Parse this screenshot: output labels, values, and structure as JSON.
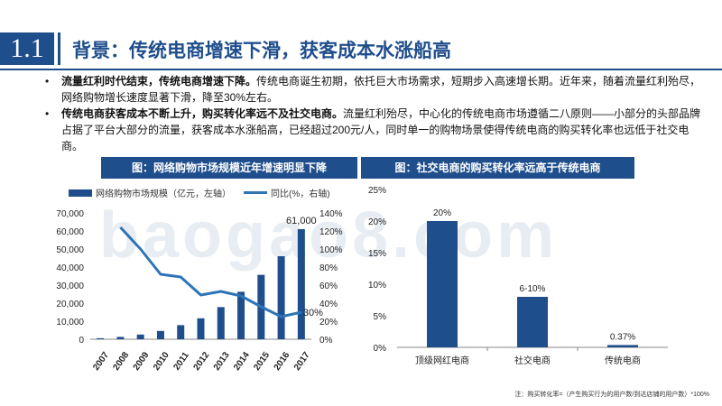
{
  "header": {
    "section_number": "1.1",
    "title": "背景：传统电商增速下滑，获客成本水涨船高"
  },
  "bullets": [
    {
      "bold": "流量红利时代结束，传统电商增速下降。",
      "text": "传统电商诞生初期，依托巨大市场需求，短期步入高速增长期。近年来，随着流量红利殆尽，网络购物增长速度显著下滑，降至30%左右。"
    },
    {
      "bold": "传统电商获客成本不断上升，购买转化率远不及社交电商。",
      "text": "流量红利殆尽，中心化的传统电商市场遵循二八原则——小部分的头部品牌占据了平台大部分的流量，获客成本水涨船高，已经超过200元/人，同时单一的购物场景使得传统电商的购买转化率也远低于社交电商。"
    }
  ],
  "watermark": "baogao8.com",
  "footnote": "注：购买转化率=（产生购买行为的用户数/到达店铺的用户数）*100%",
  "colors": {
    "primary": "#1f4e8c",
    "line": "#2e75b6"
  },
  "chart_data": [
    {
      "type": "bar",
      "title": "图：网络购物市场规模近年增速明显下降",
      "categories": [
        "2007",
        "2008",
        "2009",
        "2010",
        "2011",
        "2012",
        "2013",
        "2014",
        "2015",
        "2016",
        "2017"
      ],
      "series": [
        {
          "name": "网络购物市场规模（亿元，左轴）",
          "type": "bar",
          "axis": "left",
          "values": [
            560,
            1300,
            2600,
            4600,
            7800,
            11600,
            17800,
            26300,
            35700,
            46000,
            61000
          ]
        },
        {
          "name": "同比(%，右轴)",
          "type": "line",
          "axis": "right",
          "values": [
            null,
            124,
            100,
            72,
            69,
            49,
            53,
            48,
            36,
            25,
            30
          ]
        }
      ],
      "ylim_left": [
        0,
        70000
      ],
      "yticks_left": [
        "0",
        "10,000",
        "20,000",
        "30,000",
        "40,000",
        "50,000",
        "60,000",
        "70,000"
      ],
      "ylim_right": [
        0,
        140
      ],
      "yticks_right": [
        "0%",
        "20%",
        "40%",
        "60%",
        "80%",
        "100%",
        "120%",
        "140%"
      ],
      "data_labels": {
        "bar_last": "61,000",
        "line_last": "30%"
      },
      "legend": "top"
    },
    {
      "type": "bar",
      "title": "图：社交电商的购买转化率远高于传统电商",
      "categories": [
        "顶级网红电商",
        "社交电商",
        "传统电商"
      ],
      "values": [
        20,
        8,
        0.37
      ],
      "data_labels": [
        "20%",
        "6-10%",
        "0.37%"
      ],
      "ylim": [
        0,
        25
      ],
      "yticks": [
        "0%",
        "5%",
        "10%",
        "15%",
        "20%",
        "25%"
      ],
      "legend": "none"
    }
  ]
}
